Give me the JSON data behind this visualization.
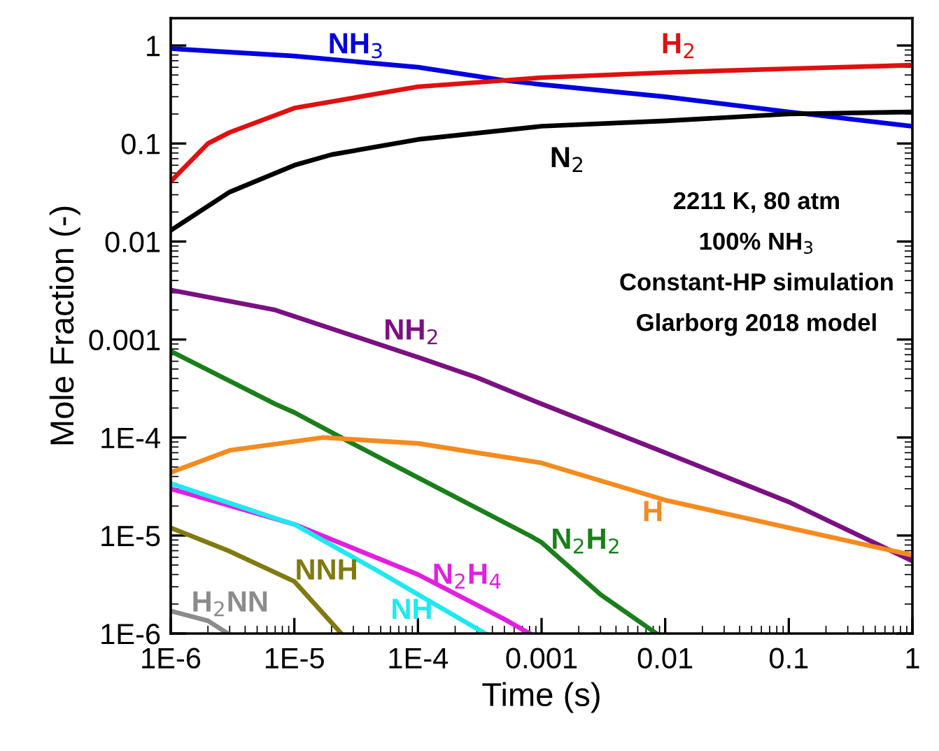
{
  "chart_data": {
    "type": "line",
    "xlabel": "Time (s)",
    "ylabel": "Mole Fraction (-)",
    "log": "xy",
    "grid": false,
    "legend": false,
    "marker": "none",
    "line_style": "solid",
    "xlim": [
      1e-06,
      1
    ],
    "ylim": [
      1e-06,
      1.9
    ],
    "xticks": [
      {
        "value": 1e-06,
        "label": "1E-6"
      },
      {
        "value": 1e-05,
        "label": "1E-5"
      },
      {
        "value": 0.0001,
        "label": "1E-4"
      },
      0.001,
      0.01,
      0.1,
      1
    ],
    "yticks": [
      {
        "value": 1e-06,
        "label": "1E-6"
      },
      {
        "value": 1e-05,
        "label": "1E-5"
      },
      {
        "value": 0.0001,
        "label": "1E-4"
      },
      0.001,
      0.01,
      0.1,
      1
    ],
    "series": [
      {
        "name": "NH$_{3}$",
        "color": "#0000e0",
        "x": [
          1e-06,
          1e-05,
          0.0001,
          0.0005,
          0.001,
          0.01,
          0.1,
          1
        ],
        "values": [
          0.93,
          0.78,
          0.6,
          0.44,
          0.4,
          0.3,
          0.21,
          0.15
        ]
      },
      {
        "name": "H$_{2}$",
        "color": "#e01010",
        "x": [
          1e-06,
          2e-06,
          3e-06,
          1e-05,
          0.0001,
          0.0005,
          0.001,
          0.01,
          0.1,
          1
        ],
        "values": [
          0.041,
          0.1,
          0.13,
          0.23,
          0.38,
          0.44,
          0.47,
          0.53,
          0.58,
          0.63
        ]
      },
      {
        "name": "N$_{2}$",
        "color": "#000000",
        "x": [
          1e-06,
          3e-06,
          1e-05,
          2e-05,
          0.0001,
          0.001,
          0.01,
          0.1,
          1
        ],
        "values": [
          0.013,
          0.032,
          0.06,
          0.077,
          0.11,
          0.15,
          0.17,
          0.2,
          0.21
        ]
      },
      {
        "name": "NH$_{2}$",
        "color": "#7b1082",
        "x": [
          1e-06,
          7e-06,
          0.0001,
          0.0003,
          0.001,
          0.01,
          0.1,
          1
        ],
        "values": [
          0.0032,
          0.002,
          0.00066,
          0.00041,
          0.00022,
          7e-05,
          2.2e-05,
          5.5e-06
        ]
      },
      {
        "name": "N$_{2}$H$_{2}$",
        "color": "#1a7f1a",
        "x": [
          1e-06,
          7e-06,
          1e-05,
          2.5e-05,
          0.0001,
          0.0008,
          0.001,
          0.003,
          0.0085
        ],
        "values": [
          0.00076,
          0.00022,
          0.00018,
          9.7e-05,
          3.9e-05,
          1e-05,
          8.5e-06,
          2.5e-06,
          1e-06
        ]
      },
      {
        "name": "H",
        "color": "#f58a1f",
        "x": [
          1e-06,
          3e-06,
          1.7e-05,
          0.0001,
          0.001,
          0.01,
          0.1,
          1
        ],
        "values": [
          4.4e-05,
          7.4e-05,
          0.0001,
          8.7e-05,
          5.5e-05,
          2.3e-05,
          1.2e-05,
          6.3e-06
        ]
      },
      {
        "name": "N$_{2}$H$_{4}$",
        "color": "#e020e0",
        "x": [
          1e-06,
          1e-05,
          0.0001,
          0.0005,
          0.0008
        ],
        "values": [
          3e-05,
          1.3e-05,
          4e-06,
          1.4e-06,
          1e-06
        ]
      },
      {
        "name": "NH",
        "color": "#20e8f0",
        "x": [
          1e-06,
          7e-06,
          1e-05,
          4.8e-05,
          0.0001,
          0.00035
        ],
        "values": [
          3.4e-05,
          1.5e-05,
          1.3e-05,
          4.3e-06,
          2.5e-06,
          1e-06
        ]
      },
      {
        "name": "NNH",
        "color": "#807a10",
        "x": [
          1e-06,
          3e-06,
          1e-05,
          2.4e-05
        ],
        "values": [
          1.2e-05,
          6.9e-06,
          3.4e-06,
          1e-06
        ]
      },
      {
        "name": "H$_{2}$NN",
        "color": "#8c8c8c",
        "x": [
          1e-06,
          2e-06,
          2.9e-06
        ],
        "values": [
          1.7e-06,
          1.35e-06,
          1e-06
        ]
      }
    ],
    "annotations": [
      "2211 K, 80 atm",
      "100% NH$_{3}$",
      "Constant-HP simulation",
      "Glarborg 2018 model"
    ]
  }
}
